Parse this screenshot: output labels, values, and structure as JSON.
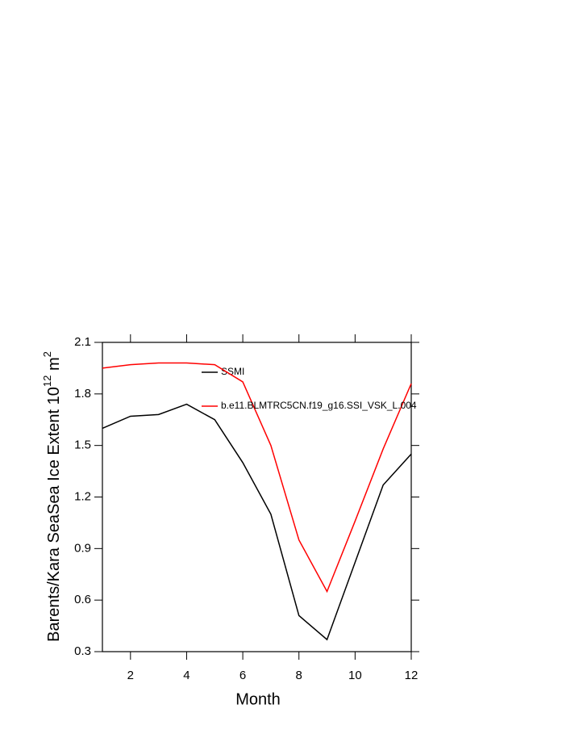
{
  "chart_data": {
    "type": "line",
    "ylabel_parts": [
      "Barents/Kara SeaSea Ice Extent 10",
      "12",
      " m",
      "2"
    ],
    "xlabel": "Month",
    "x": [
      1,
      2,
      3,
      4,
      5,
      6,
      7,
      8,
      9,
      10,
      11,
      12
    ],
    "series": [
      {
        "name": "SSMI",
        "color": "#000000",
        "values": [
          1.6,
          1.67,
          1.68,
          1.74,
          1.65,
          1.4,
          1.1,
          0.51,
          0.37,
          0.82,
          1.27,
          1.45
        ]
      },
      {
        "name": "b.e11.BLMTRC5CN.f19_g16.SSI_VSK_L.004",
        "color": "#ff0000",
        "values": [
          1.95,
          1.97,
          1.98,
          1.98,
          1.97,
          1.87,
          1.5,
          0.95,
          0.65,
          1.06,
          1.48,
          1.86
        ]
      }
    ],
    "xlim": [
      1,
      12
    ],
    "xticks": [
      2,
      4,
      6,
      8,
      10,
      12
    ],
    "ylim": [
      0.3,
      2.1
    ],
    "yticks": [
      0.3,
      0.6,
      0.9,
      1.2,
      1.5,
      1.8,
      2.1
    ]
  }
}
